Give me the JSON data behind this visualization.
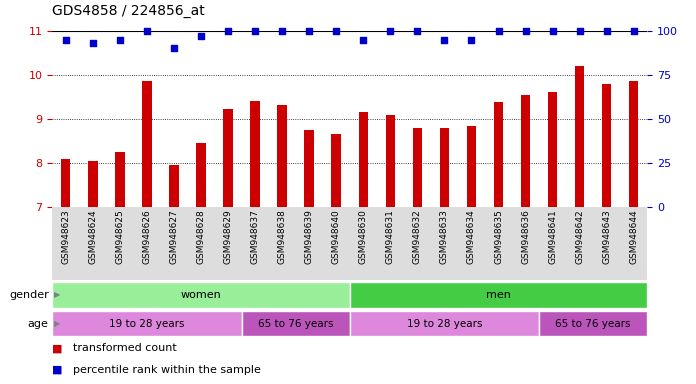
{
  "title": "GDS4858 / 224856_at",
  "samples": [
    "GSM948623",
    "GSM948624",
    "GSM948625",
    "GSM948626",
    "GSM948627",
    "GSM948628",
    "GSM948629",
    "GSM948637",
    "GSM948638",
    "GSM948639",
    "GSM948640",
    "GSM948630",
    "GSM948631",
    "GSM948632",
    "GSM948633",
    "GSM948634",
    "GSM948635",
    "GSM948636",
    "GSM948641",
    "GSM948642",
    "GSM948643",
    "GSM948644"
  ],
  "bar_values": [
    8.1,
    8.05,
    8.25,
    9.87,
    7.95,
    8.45,
    9.22,
    9.4,
    9.32,
    8.75,
    8.65,
    9.15,
    9.1,
    8.8,
    8.8,
    8.85,
    9.38,
    9.55,
    9.62,
    10.2,
    9.8,
    9.87
  ],
  "dot_values": [
    95,
    93,
    95,
    100,
    90,
    97,
    100,
    100,
    100,
    100,
    100,
    95,
    100,
    100,
    95,
    95,
    100,
    100,
    100,
    100,
    100,
    100
  ],
  "ylim_left": [
    7,
    11
  ],
  "ylim_right": [
    0,
    100
  ],
  "yticks_left": [
    7,
    8,
    9,
    10,
    11
  ],
  "yticks_right": [
    0,
    25,
    50,
    75,
    100
  ],
  "bar_color": "#cc0000",
  "dot_color": "#0000cc",
  "bar_width": 0.35,
  "gender_groups": [
    {
      "label": "women",
      "start": 0,
      "end": 11,
      "color": "#99ee99"
    },
    {
      "label": "men",
      "start": 11,
      "end": 22,
      "color": "#44cc44"
    }
  ],
  "age_groups": [
    {
      "label": "19 to 28 years",
      "start": 0,
      "end": 7,
      "color": "#dd88dd"
    },
    {
      "label": "65 to 76 years",
      "start": 7,
      "end": 11,
      "color": "#bb55bb"
    },
    {
      "label": "19 to 28 years",
      "start": 11,
      "end": 18,
      "color": "#dd88dd"
    },
    {
      "label": "65 to 76 years",
      "start": 18,
      "end": 22,
      "color": "#bb55bb"
    }
  ],
  "legend_items": [
    {
      "label": "transformed count",
      "color": "#cc0000"
    },
    {
      "label": "percentile rank within the sample",
      "color": "#0000cc"
    }
  ],
  "bg_color": "#ffffff",
  "left_axis_color": "#cc0000",
  "right_axis_color": "#0000cc"
}
